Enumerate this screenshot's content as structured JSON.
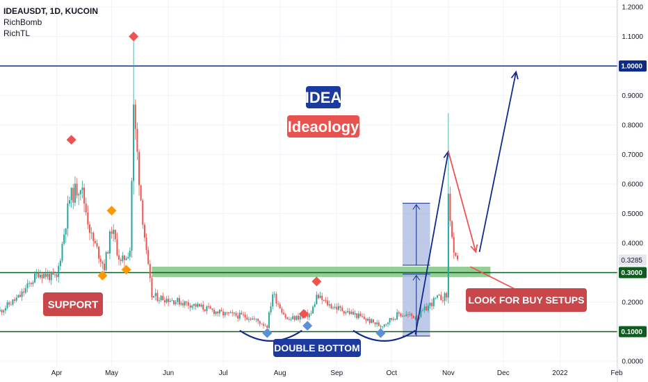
{
  "legend": {
    "symbol_line": "IDEAUSDT, 1D, KUCOIN",
    "indicator_1": "RichBomb",
    "indicator_2": "RichTL"
  },
  "colors": {
    "up": "#26a69a",
    "down": "#ef5350",
    "navy": "#0d2a8a",
    "green_line": "#0b5e1c",
    "zone": "#6fbf73",
    "support_box": "#c9474b",
    "idea_box": "#1c3a9e",
    "ideaology_box": "#e8524f",
    "measure_box": "#a9b7e0",
    "diamond_red": "#ef5350",
    "diamond_orange": "#ff9800",
    "diamond_blue": "#5b8fd6"
  },
  "chart_data": {
    "type": "candlestick",
    "symbol": "IDEAUSDT",
    "interval": "1D",
    "exchange": "KUCOIN",
    "ylim": [
      0,
      1.2
    ],
    "y_ticks": [
      "0.0000",
      "0.1000",
      "0.2000",
      "0.3000",
      "0.4000",
      "0.5000",
      "0.6000",
      "0.7000",
      "0.8000",
      "0.9000",
      "1.0000",
      "1.1000",
      "1.2000"
    ],
    "x_ticks": [
      "Apr",
      "May",
      "Jun",
      "Jul",
      "Aug",
      "Sep",
      "Oct",
      "Nov",
      "Dec",
      "2022",
      "Feb"
    ],
    "price_path": [
      {
        "date": "2021-03-01",
        "price": 0.17
      },
      {
        "date": "2021-03-12",
        "price": 0.22
      },
      {
        "date": "2021-03-22",
        "price": 0.3
      },
      {
        "date": "2021-04-01",
        "price": 0.28
      },
      {
        "date": "2021-04-08",
        "price": 0.55
      },
      {
        "date": "2021-04-14",
        "price": 0.6
      },
      {
        "date": "2021-04-20",
        "price": 0.42
      },
      {
        "date": "2021-04-27",
        "price": 0.32
      },
      {
        "date": "2021-05-01",
        "price": 0.45
      },
      {
        "date": "2021-05-06",
        "price": 0.33
      },
      {
        "date": "2021-05-11",
        "price": 0.38
      },
      {
        "date": "2021-05-13",
        "price": 0.85
      },
      {
        "date": "2021-05-17",
        "price": 0.55
      },
      {
        "date": "2021-05-20",
        "price": 0.36
      },
      {
        "date": "2021-05-23",
        "price": 0.22
      },
      {
        "date": "2021-06-01",
        "price": 0.21
      },
      {
        "date": "2021-06-15",
        "price": 0.19
      },
      {
        "date": "2021-07-01",
        "price": 0.16
      },
      {
        "date": "2021-07-15",
        "price": 0.15
      },
      {
        "date": "2021-07-25",
        "price": 0.12
      },
      {
        "date": "2021-07-28",
        "price": 0.23
      },
      {
        "date": "2021-08-05",
        "price": 0.14
      },
      {
        "date": "2021-08-18",
        "price": 0.16
      },
      {
        "date": "2021-08-21",
        "price": 0.22
      },
      {
        "date": "2021-08-28",
        "price": 0.19
      },
      {
        "date": "2021-09-10",
        "price": 0.16
      },
      {
        "date": "2021-09-25",
        "price": 0.12
      },
      {
        "date": "2021-10-05",
        "price": 0.16
      },
      {
        "date": "2021-10-15",
        "price": 0.15
      },
      {
        "date": "2021-10-25",
        "price": 0.21
      },
      {
        "date": "2021-10-31",
        "price": 0.22
      },
      {
        "date": "2021-11-01",
        "price": 0.56
      },
      {
        "date": "2021-11-04",
        "price": 0.35
      },
      {
        "date": "2021-11-06",
        "price": 0.33
      }
    ],
    "extremes": [
      {
        "date": "2021-05-13",
        "high": 1.1
      },
      {
        "date": "2021-11-01",
        "high": 0.84
      }
    ],
    "last_price": "0.3285",
    "horizontal_levels": [
      {
        "value": 1.0,
        "label": "1.0000",
        "color": "navy"
      },
      {
        "value": 0.3,
        "label": "0.3000",
        "color": "green_line"
      },
      {
        "value": 0.1,
        "label": "0.1000",
        "color": "green_line"
      }
    ],
    "support_zone": {
      "from_date": "2021-05-23",
      "to_date": "2021-11-24",
      "low": 0.285,
      "high": 0.32
    },
    "measure_boxes": [
      {
        "from_date": "2021-10-07",
        "to_date": "2021-10-22",
        "low": 0.325,
        "high": 0.535
      },
      {
        "from_date": "2021-10-07",
        "to_date": "2021-10-22",
        "low": 0.085,
        "high": 0.295
      }
    ],
    "projection_paths": [
      {
        "color": "navy",
        "points": [
          {
            "date": "2021-10-14",
            "price": 0.09
          },
          {
            "date": "2021-11-01",
            "price": 0.71
          }
        ]
      },
      {
        "color": "down",
        "points": [
          {
            "date": "2021-11-01",
            "price": 0.71
          },
          {
            "date": "2021-11-16",
            "price": 0.37
          }
        ]
      },
      {
        "color": "navy",
        "points": [
          {
            "date": "2021-11-18",
            "price": 0.37
          },
          {
            "date": "2021-12-08",
            "price": 0.98
          }
        ]
      },
      {
        "color": "down",
        "points": [
          {
            "date": "2021-11-13",
            "price": 0.32
          },
          {
            "date": "2021-12-12",
            "price": 0.23
          }
        ]
      }
    ],
    "double_bottom_arcs": [
      {
        "from_date": "2021-07-10",
        "to_date": "2021-08-13",
        "bottom": 0.085
      },
      {
        "from_date": "2021-09-10",
        "to_date": "2021-10-14",
        "bottom": 0.085
      }
    ],
    "signal_markers": [
      {
        "date": "2021-04-09",
        "price": 0.75,
        "color": "diamond_red"
      },
      {
        "date": "2021-05-13",
        "price": 1.1,
        "color": "diamond_red"
      },
      {
        "date": "2021-08-21",
        "price": 0.27,
        "color": "diamond_red"
      },
      {
        "date": "2021-08-14",
        "price": 0.16,
        "color": "diamond_red"
      },
      {
        "date": "2021-05-01",
        "price": 0.51,
        "color": "diamond_orange"
      },
      {
        "date": "2021-04-26",
        "price": 0.29,
        "color": "diamond_orange"
      },
      {
        "date": "2021-05-09",
        "price": 0.31,
        "color": "diamond_orange"
      },
      {
        "date": "2021-07-25",
        "price": 0.095,
        "color": "diamond_blue"
      },
      {
        "date": "2021-08-16",
        "price": 0.12,
        "color": "diamond_blue"
      },
      {
        "date": "2021-09-25",
        "price": 0.095,
        "color": "diamond_blue"
      }
    ],
    "annotations": {
      "title_top": "IDEA",
      "title_bottom": "Ideaology",
      "support": "SUPPORT",
      "double_bottom": "DOUBLE BOTTOM",
      "buy_setups": "LOOK FOR BUY SETUPS"
    }
  }
}
